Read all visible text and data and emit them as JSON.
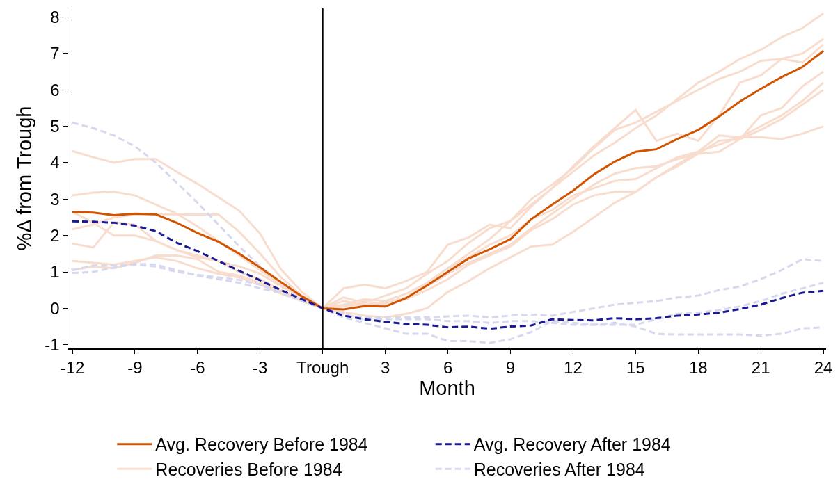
{
  "chart_data": {
    "type": "line",
    "xlabel": "Month",
    "ylabel": "%Δ from Trough",
    "x": [
      -12,
      -11,
      -10,
      -9,
      -8,
      -7,
      -6,
      -5,
      -4,
      -3,
      -2,
      -1,
      0,
      1,
      2,
      3,
      4,
      5,
      6,
      7,
      8,
      9,
      10,
      11,
      12,
      13,
      14,
      15,
      16,
      17,
      18,
      19,
      20,
      21,
      22,
      23,
      24
    ],
    "xlim": [
      -12.2,
      24.13
    ],
    "ylim": [
      -1.1,
      8.24
    ],
    "xticks": [
      -12,
      -9,
      -6,
      -3,
      {
        "value": 0,
        "label": "Trough"
      },
      3,
      6,
      9,
      12,
      15,
      18,
      21,
      24
    ],
    "yticks": [
      -1,
      0,
      1,
      2,
      3,
      4,
      5,
      6,
      7,
      8
    ],
    "grid": false,
    "legend": "bottom",
    "marker": "none",
    "ref_lines": [
      {
        "axis": "x",
        "value": 0,
        "color": "#000000"
      }
    ],
    "series": [
      {
        "name": "Recoveries Before 1984",
        "color": "#f8dccd",
        "line_style": "solid",
        "values": [
          4.32,
          4.15,
          4.0,
          4.1,
          4.1,
          3.75,
          3.42,
          3.05,
          2.68,
          2.05,
          1.07,
          0.45,
          0,
          0.1,
          0.25,
          0.2,
          0.4,
          0.7,
          1.1,
          1.5,
          1.9,
          2.4,
          2.85,
          3.3,
          3.75,
          4.2,
          4.55,
          4.95,
          5.3,
          5.75,
          6.2,
          6.5,
          6.85,
          7.1,
          7.45,
          7.7,
          8.1
        ]
      },
      {
        "color": "#f8dccd",
        "line_style": "solid",
        "values": [
          3.1,
          3.18,
          3.2,
          3.1,
          2.85,
          2.6,
          2.25,
          1.85,
          1.45,
          1.05,
          0.65,
          0.3,
          0,
          0.55,
          0.65,
          0.55,
          0.75,
          1.0,
          1.75,
          1.95,
          2.3,
          2.2,
          2.8,
          3.3,
          3.9,
          4.45,
          4.95,
          5.45,
          4.6,
          4.8,
          4.6,
          5.3,
          6.2,
          6.4,
          6.85,
          6.75,
          7.25
        ]
      },
      {
        "color": "#f8dccd",
        "line_style": "solid",
        "values": [
          2.17,
          2.3,
          2.5,
          2.57,
          2.58,
          2.58,
          2.57,
          2.58,
          2.1,
          1.5,
          0.85,
          0.35,
          0,
          0.3,
          0.15,
          0.35,
          0.55,
          0.95,
          1.3,
          1.8,
          2.2,
          2.4,
          3.0,
          3.4,
          3.85,
          4.4,
          4.9,
          5.1,
          5.4,
          5.7,
          6.0,
          6.3,
          6.5,
          6.8,
          6.85,
          7.0,
          7.4
        ]
      },
      {
        "color": "#f8dccd",
        "line_style": "solid",
        "values": [
          1.78,
          1.67,
          2.37,
          2.3,
          1.85,
          1.6,
          1.4,
          1.3,
          1.15,
          0.95,
          0.6,
          0.3,
          0,
          0.2,
          0.1,
          0.15,
          0.3,
          0.6,
          0.95,
          1.25,
          1.5,
          1.75,
          2.2,
          2.6,
          3.0,
          3.4,
          3.7,
          3.85,
          3.9,
          4.1,
          4.25,
          4.3,
          4.65,
          5.3,
          5.5,
          6.1,
          6.5
        ]
      },
      {
        "color": "#f8dccd",
        "line_style": "solid",
        "values": [
          2.65,
          2.35,
          2.0,
          2.0,
          1.85,
          1.6,
          1.45,
          1.3,
          1.0,
          0.8,
          0.5,
          0.25,
          0,
          0.05,
          0.2,
          0.1,
          0.25,
          0.5,
          0.8,
          1.2,
          1.45,
          1.7,
          2.15,
          2.45,
          2.85,
          3.1,
          3.2,
          3.2,
          3.6,
          3.95,
          4.3,
          4.5,
          4.7,
          5.0,
          5.3,
          5.7,
          6.2
        ]
      },
      {
        "color": "#f8dccd",
        "line_style": "solid",
        "values": [
          1.05,
          1.15,
          1.1,
          1.25,
          1.45,
          1.45,
          1.35,
          1.0,
          0.9,
          0.7,
          0.45,
          0.2,
          0,
          0.1,
          0.05,
          0.1,
          0.3,
          0.7,
          1.1,
          1.4,
          1.75,
          2.0,
          2.45,
          2.7,
          3.1,
          3.3,
          3.5,
          3.55,
          3.85,
          4.15,
          4.3,
          4.75,
          4.7,
          4.7,
          4.65,
          4.8,
          5.0
        ]
      },
      {
        "color": "#f8dccd",
        "line_style": "solid",
        "values": [
          1.3,
          1.25,
          1.2,
          1.3,
          1.4,
          1.3,
          1.1,
          0.95,
          0.85,
          0.65,
          0.4,
          0.2,
          0,
          -0.1,
          -0.2,
          -0.25,
          -0.15,
          0.0,
          0.45,
          0.75,
          1.1,
          1.4,
          1.7,
          1.75,
          2.1,
          2.5,
          2.9,
          3.2,
          3.6,
          3.9,
          4.25,
          4.6,
          4.65,
          4.9,
          5.2,
          5.6,
          6.0
        ]
      },
      {
        "name": "Recoveries After 1984",
        "color": "#d6d8ee",
        "line_style": "dashed",
        "values": [
          5.1,
          4.95,
          4.75,
          4.45,
          4.0,
          3.45,
          2.9,
          2.3,
          1.7,
          1.15,
          0.7,
          0.3,
          0,
          -0.2,
          -0.25,
          -0.25,
          -0.25,
          -0.25,
          -0.22,
          -0.2,
          -0.25,
          -0.2,
          -0.17,
          -0.2,
          -0.1,
          0.0,
          0.1,
          0.15,
          0.2,
          0.3,
          0.35,
          0.5,
          0.6,
          0.8,
          1.05,
          1.35,
          1.3
        ]
      },
      {
        "color": "#d6d8ee",
        "line_style": "dashed",
        "values": [
          1.05,
          1.18,
          1.18,
          1.2,
          1.15,
          1.0,
          0.92,
          0.85,
          0.78,
          0.65,
          0.45,
          0.2,
          0,
          -0.25,
          -0.4,
          -0.55,
          -0.7,
          -0.7,
          -0.9,
          -0.9,
          -0.95,
          -0.85,
          -0.65,
          -0.35,
          -0.4,
          -0.45,
          -0.4,
          -0.5,
          -0.7,
          -0.72,
          -0.72,
          -0.72,
          -0.72,
          -0.75,
          -0.7,
          -0.55,
          -0.52
        ]
      },
      {
        "color": "#d6d8ee",
        "line_style": "dashed",
        "values": [
          0.97,
          1.0,
          1.12,
          1.22,
          1.2,
          1.05,
          0.9,
          0.8,
          0.7,
          0.55,
          0.42,
          0.2,
          0,
          -0.15,
          -0.3,
          -0.3,
          -0.3,
          -0.3,
          -0.35,
          -0.35,
          -0.4,
          -0.35,
          -0.35,
          -0.4,
          -0.45,
          -0.45,
          -0.45,
          -0.45,
          -0.3,
          -0.15,
          -0.12,
          -0.05,
          0.05,
          0.2,
          0.4,
          0.55,
          0.7
        ]
      },
      {
        "name": "Avg. Recovery Before 1984",
        "color": "#d35400",
        "line_style": "solid",
        "values": [
          2.65,
          2.63,
          2.56,
          2.6,
          2.58,
          2.35,
          2.07,
          1.83,
          1.5,
          1.12,
          0.72,
          0.33,
          0,
          -0.03,
          0.06,
          0.05,
          0.28,
          0.63,
          1.0,
          1.37,
          1.62,
          1.9,
          2.45,
          2.85,
          3.23,
          3.68,
          4.03,
          4.3,
          4.37,
          4.65,
          4.9,
          5.27,
          5.68,
          6.03,
          6.35,
          6.63,
          7.07
        ]
      },
      {
        "name": "Avg. Recovery After 1984",
        "color": "#1a1a96",
        "line_style": "dashed",
        "values": [
          2.39,
          2.38,
          2.35,
          2.27,
          2.12,
          1.8,
          1.57,
          1.3,
          1.03,
          0.77,
          0.5,
          0.25,
          0,
          -0.2,
          -0.3,
          -0.37,
          -0.43,
          -0.45,
          -0.52,
          -0.5,
          -0.56,
          -0.5,
          -0.47,
          -0.3,
          -0.32,
          -0.33,
          -0.27,
          -0.3,
          -0.27,
          -0.2,
          -0.17,
          -0.12,
          -0.02,
          0.1,
          0.28,
          0.43,
          0.48
        ]
      }
    ]
  }
}
